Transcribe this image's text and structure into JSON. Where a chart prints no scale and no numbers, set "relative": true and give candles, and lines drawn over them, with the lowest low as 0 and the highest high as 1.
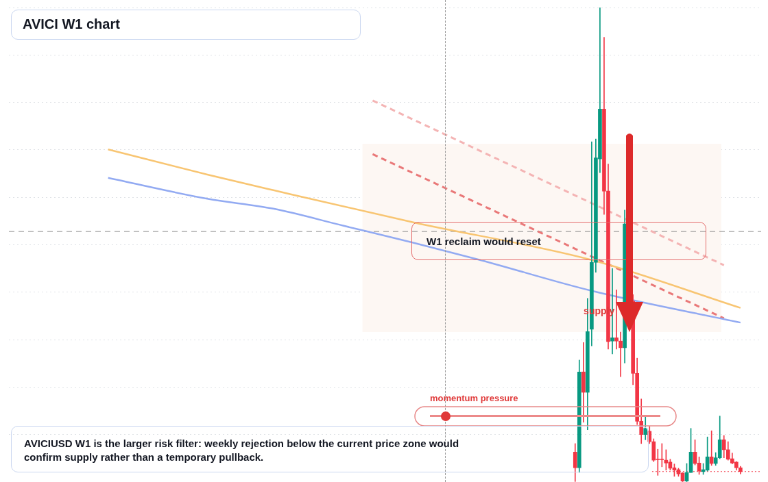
{
  "chart_data": {
    "type": "candlestick",
    "title": "AVICI W1 chart",
    "relative": true,
    "grid": "y",
    "legend": false,
    "categories": [
      null,
      null,
      null,
      null,
      null,
      null,
      null,
      null,
      null,
      null,
      null,
      null,
      null,
      null,
      null,
      null,
      null,
      null,
      null,
      null,
      null,
      null,
      null,
      null,
      null,
      null,
      null,
      null,
      null,
      null,
      null,
      null,
      null,
      null,
      null,
      null,
      null,
      null,
      null,
      null,
      null,
      null,
      null,
      null,
      null,
      null,
      null,
      null,
      null,
      null,
      null,
      null,
      null,
      null,
      null,
      null,
      null,
      null,
      null,
      null,
      null,
      null,
      null,
      null,
      null,
      null,
      null,
      null,
      null,
      null,
      null,
      null,
      null,
      null,
      null,
      null,
      null,
      null,
      null,
      null,
      null,
      null,
      null,
      null,
      null,
      null,
      null,
      null,
      null,
      null,
      null,
      null,
      null,
      null,
      null,
      null,
      null,
      null,
      null,
      null,
      null,
      null,
      null,
      null,
      null,
      null,
      null,
      null,
      null,
      null,
      null,
      null,
      null,
      null,
      null,
      null,
      null,
      null,
      null,
      null,
      null,
      null,
      null,
      null,
      null,
      null,
      null,
      null,
      null,
      null,
      null,
      null,
      null,
      null,
      null,
      null,
      null,
      null,
      null,
      null,
      null,
      null,
      null,
      null,
      null,
      null,
      null,
      null,
      null,
      null,
      null,
      null,
      null,
      null,
      null,
      null,
      null,
      null,
      null,
      null,
      null,
      null,
      null,
      null,
      null,
      null,
      null,
      null,
      null,
      null,
      null,
      null,
      null,
      null,
      null,
      null,
      null,
      null,
      null,
      null,
      null,
      null,
      null
    ],
    "ohlc": [
      null,
      null,
      null,
      null,
      null,
      null,
      null,
      null,
      null,
      null,
      null,
      null,
      null,
      null,
      null,
      null,
      null,
      null,
      null,
      null,
      null,
      null,
      null,
      null,
      null,
      null,
      null,
      null,
      null,
      null,
      null,
      null,
      null,
      null,
      null,
      null,
      null,
      null,
      null,
      null,
      null,
      null,
      null,
      null,
      null,
      null,
      null,
      null,
      null,
      null,
      null,
      null,
      null,
      null,
      null,
      null,
      null,
      null,
      null,
      null,
      null,
      null,
      null,
      null,
      null,
      null,
      null,
      null,
      null,
      null,
      null,
      null,
      null,
      null,
      null,
      null,
      null,
      null,
      null,
      null,
      null,
      null,
      null,
      null,
      null,
      null,
      null,
      null,
      null,
      null,
      null,
      null,
      null,
      null,
      null,
      null,
      null,
      null,
      null,
      null,
      null,
      null,
      null,
      null,
      null,
      null,
      null,
      null,
      null,
      null,
      null,
      null,
      null,
      null,
      null,
      null,
      null,
      null,
      null,
      null,
      null,
      null,
      null,
      null,
      null,
      null,
      null,
      null,
      null,
      null,
      null,
      null,
      null,
      null,
      null,
      null,
      null,
      [
        0.063,
        0.081,
        0.001,
        0.03
      ],
      [
        0.03,
        0.257,
        0.02,
        0.232
      ],
      [
        0.232,
        0.294,
        0.126,
        0.189
      ],
      [
        0.189,
        0.387,
        0.11,
        0.317
      ],
      [
        0.322,
        0.717,
        0.287,
        0.463
      ],
      [
        0.463,
        0.723,
        0.442,
        0.683
      ],
      [
        0.681,
        1.0,
        0.652,
        0.786
      ],
      [
        0.786,
        0.937,
        0.564,
        0.613
      ],
      [
        0.613,
        0.67,
        0.28,
        0.296
      ],
      [
        0.297,
        0.45,
        0.27,
        0.304
      ],
      [
        0.304,
        0.405,
        0.28,
        0.297
      ],
      [
        0.297,
        0.316,
        0.222,
        0.283
      ],
      [
        0.283,
        0.573,
        0.251,
        0.544
      ],
      null,
      [
        0.381,
        0.395,
        0.205,
        0.229
      ],
      [
        0.229,
        0.261,
        0.121,
        0.128
      ],
      [
        0.128,
        0.175,
        0.081,
        0.1
      ],
      [
        0.1,
        0.14,
        0.089,
        0.113
      ],
      [
        0.107,
        0.117,
        0.081,
        0.085
      ],
      [
        0.085,
        0.091,
        0.043,
        0.046
      ],
      [
        0.048,
        0.069,
        0.014,
        0.047
      ],
      [
        0.048,
        0.081,
        0.032,
        0.047
      ],
      [
        0.046,
        0.068,
        0.025,
        0.04
      ],
      [
        0.042,
        0.048,
        0.025,
        0.029
      ],
      [
        0.03,
        0.038,
        0.012,
        0.025
      ],
      [
        0.026,
        0.029,
        0.012,
        0.017
      ],
      [
        0.019,
        0.02,
        0.0,
        0.002
      ],
      [
        0.002,
        0.039,
        0.0,
        0.02
      ],
      [
        0.02,
        0.113,
        0.02,
        0.063
      ],
      [
        0.063,
        0.089,
        0.036,
        0.039
      ],
      [
        0.04,
        0.053,
        0.016,
        0.023
      ],
      [
        0.022,
        0.039,
        0.016,
        0.026
      ],
      [
        0.025,
        0.095,
        0.023,
        0.053
      ],
      [
        0.053,
        0.108,
        0.035,
        0.039
      ],
      [
        0.039,
        0.062,
        0.035,
        0.051
      ],
      [
        0.051,
        0.139,
        0.049,
        0.089
      ],
      [
        0.089,
        0.098,
        0.051,
        0.068
      ],
      [
        0.068,
        0.085,
        0.046,
        0.048
      ],
      [
        0.049,
        0.061,
        0.038,
        0.04
      ],
      [
        0.042,
        0.043,
        0.025,
        0.03
      ],
      [
        0.03,
        0.033,
        0.017,
        0.022
      ],
      null,
      null,
      null,
      null,
      null
    ],
    "colors": [
      null,
      null,
      null,
      null,
      null,
      null,
      null,
      null,
      null,
      null,
      null,
      null,
      null,
      null,
      null,
      null,
      null,
      null,
      null,
      null,
      null,
      null,
      null,
      null,
      null,
      null,
      null,
      null,
      null,
      null,
      null,
      null,
      null,
      null,
      null,
      null,
      null,
      null,
      null,
      null,
      null,
      null,
      null,
      null,
      null,
      null,
      null,
      null,
      null,
      null,
      null,
      null,
      null,
      null,
      null,
      null,
      null,
      null,
      null,
      null,
      null,
      null,
      null,
      null,
      null,
      null,
      null,
      null,
      null,
      null,
      null,
      null,
      null,
      null,
      null,
      null,
      null,
      null,
      null,
      null,
      null,
      null,
      null,
      null,
      null,
      null,
      null,
      null,
      null,
      null,
      null,
      null,
      null,
      null,
      null,
      null,
      null,
      null,
      null,
      null,
      null,
      null,
      null,
      null,
      null,
      null,
      null,
      null,
      null,
      null,
      null,
      null,
      null,
      null,
      null,
      null,
      null,
      null,
      null,
      null,
      null,
      null,
      null,
      null,
      null,
      null,
      null,
      null,
      null,
      null,
      null,
      null,
      null,
      null,
      null,
      null,
      null,
      "#f23645",
      "#089981",
      "#f23645",
      "#089981",
      "#089981",
      "#089981",
      "#089981",
      "#f23645",
      "#f23645",
      "#089981",
      "#f23645",
      "#f23645",
      "#089981",
      null,
      "#f23645",
      "#f23645",
      "#f23645",
      "#089981",
      "#f23645",
      "#f23645",
      "#f23645",
      "#f23645",
      "#f23645",
      "#f23645",
      "#f23645",
      "#f23645",
      "#f23645",
      "#089981",
      "#089981",
      "#f23645",
      "#f23645",
      "#089981",
      "#089981",
      "#f23645",
      "#089981",
      "#089981",
      "#f23645",
      "#f23645",
      "#f23645",
      "#f23645",
      "#f23645",
      null,
      null,
      null,
      null,
      null
    ],
    "series": [
      {
        "type": "line",
        "color": "#f8c572",
        "line_style": "solid",
        "values": [
          null,
          null,
          null,
          null,
          null,
          null,
          null,
          null,
          null,
          null,
          null,
          null,
          null,
          null,
          null,
          null,
          null,
          null,
          null,
          null,
          null,
          null,
          null,
          null,
          0.701,
          null,
          null,
          null,
          null,
          null,
          null,
          null,
          null,
          null,
          null,
          null,
          null,
          null,
          null,
          null,
          null,
          null,
          null,
          null,
          null,
          null,
          null,
          null,
          0.648,
          null,
          null,
          null,
          null,
          null,
          null,
          null,
          null,
          null,
          null,
          null,
          null,
          null,
          null,
          null,
          0.615,
          null,
          null,
          null,
          null,
          null,
          null,
          null,
          null,
          null,
          null,
          null,
          null,
          null,
          null,
          null,
          null,
          null,
          null,
          null,
          null,
          null,
          null,
          null,
          null,
          null,
          null,
          null,
          null,
          null,
          null,
          null,
          null,
          null,
          0.547,
          null,
          null,
          null,
          null,
          null,
          null,
          null,
          null,
          null,
          null,
          null,
          null,
          null,
          null,
          null,
          null,
          null,
          null,
          null,
          null,
          null,
          null,
          null,
          null,
          null,
          null,
          null,
          null,
          null,
          null,
          null,
          null,
          null,
          null,
          null,
          null,
          null,
          null,
          null,
          null,
          null,
          null,
          0.468,
          null,
          null,
          null,
          null,
          null,
          null,
          null,
          null,
          null,
          null,
          null,
          null,
          null,
          null,
          null,
          null,
          null,
          null,
          null,
          null,
          null,
          null,
          null,
          null,
          null,
          null,
          null,
          null,
          null,
          null,
          null,
          null,
          null,
          null,
          null,
          0.367,
          null,
          null,
          null,
          null,
          null
        ]
      },
      {
        "type": "line",
        "color": "#92aaf2",
        "line_style": "solid",
        "values": [
          null,
          null,
          null,
          null,
          null,
          null,
          null,
          null,
          null,
          null,
          null,
          null,
          null,
          null,
          null,
          null,
          null,
          null,
          null,
          null,
          null,
          null,
          null,
          null,
          0.641,
          null,
          null,
          null,
          null,
          null,
          null,
          null,
          null,
          null,
          null,
          null,
          null,
          null,
          null,
          null,
          null,
          null,
          null,
          null,
          null,
          null,
          null,
          null,
          0.597,
          null,
          null,
          null,
          null,
          null,
          null,
          null,
          null,
          null,
          null,
          null,
          null,
          null,
          null,
          null,
          0.576,
          null,
          null,
          null,
          null,
          null,
          null,
          null,
          null,
          null,
          null,
          null,
          null,
          null,
          null,
          null,
          null,
          0.54,
          null,
          null,
          null,
          null,
          null,
          null,
          null,
          null,
          null,
          null,
          null,
          null,
          null,
          null,
          null,
          null,
          0.504,
          null,
          null,
          null,
          null,
          null,
          null,
          null,
          null,
          null,
          null,
          null,
          null,
          null,
          null,
          null,
          0.468,
          null,
          null,
          null,
          null,
          null,
          null,
          null,
          null,
          null,
          null,
          null,
          null,
          null,
          null,
          null,
          null,
          null,
          null,
          null,
          null,
          null,
          null,
          null,
          null,
          null,
          null,
          0.403,
          null,
          null,
          null,
          null,
          null,
          null,
          null,
          null,
          null,
          null,
          null,
          null,
          null,
          null,
          null,
          null,
          null,
          null,
          null,
          null,
          null,
          null,
          null,
          null,
          null,
          null,
          null,
          null,
          null,
          null,
          null,
          null,
          null,
          null,
          null,
          0.336,
          null,
          null,
          null,
          null,
          null
        ]
      },
      {
        "type": "line",
        "color": "#e97878",
        "line_style": "dashed",
        "values": [
          null,
          null,
          null,
          null,
          null,
          null,
          null,
          null,
          null,
          null,
          null,
          null,
          null,
          null,
          null,
          null,
          null,
          null,
          null,
          null,
          null,
          null,
          null,
          null,
          null,
          null,
          null,
          null,
          null,
          null,
          null,
          null,
          null,
          null,
          null,
          null,
          null,
          null,
          null,
          null,
          null,
          null,
          null,
          null,
          null,
          null,
          null,
          null,
          null,
          null,
          null,
          null,
          null,
          null,
          null,
          null,
          null,
          null,
          null,
          null,
          null,
          null,
          null,
          null,
          null,
          null,
          null,
          null,
          null,
          null,
          null,
          null,
          null,
          null,
          null,
          null,
          null,
          null,
          null,
          null,
          null,
          null,
          null,
          null,
          null,
          null,
          null,
          null,
          0.691,
          null,
          null,
          null,
          null,
          null,
          null,
          null,
          null,
          null,
          null,
          null,
          null,
          null,
          null,
          null,
          null,
          null,
          null,
          null,
          null,
          null,
          null,
          null,
          null,
          null,
          null,
          null,
          null,
          null,
          null,
          null,
          null,
          null,
          null,
          null,
          null,
          null,
          null,
          null,
          null,
          null,
          null,
          null,
          null,
          null,
          null,
          null,
          null,
          null,
          null,
          null,
          null,
          null,
          null,
          null,
          null,
          null,
          null,
          null,
          null,
          null,
          null,
          null,
          null,
          null,
          null,
          null,
          null,
          null,
          null,
          null,
          null,
          null,
          null,
          null,
          null,
          null,
          null,
          null,
          null,
          null,
          null,
          null,
          null,
          0.345,
          null,
          null,
          null,
          null,
          null,
          null,
          null,
          null,
          null
        ]
      },
      {
        "type": "line",
        "color": "#f4b4b4",
        "line_style": "dashed",
        "values": [
          null,
          null,
          null,
          null,
          null,
          null,
          null,
          null,
          null,
          null,
          null,
          null,
          null,
          null,
          null,
          null,
          null,
          null,
          null,
          null,
          null,
          null,
          null,
          null,
          null,
          null,
          null,
          null,
          null,
          null,
          null,
          null,
          null,
          null,
          null,
          null,
          null,
          null,
          null,
          null,
          null,
          null,
          null,
          null,
          null,
          null,
          null,
          null,
          null,
          null,
          null,
          null,
          null,
          null,
          null,
          null,
          null,
          null,
          null,
          null,
          null,
          null,
          null,
          null,
          null,
          null,
          null,
          null,
          null,
          null,
          null,
          null,
          null,
          null,
          null,
          null,
          null,
          null,
          null,
          null,
          null,
          null,
          null,
          null,
          null,
          null,
          null,
          null,
          0.804,
          null,
          null,
          null,
          null,
          null,
          null,
          null,
          null,
          null,
          null,
          null,
          null,
          null,
          null,
          null,
          null,
          null,
          null,
          null,
          null,
          null,
          null,
          null,
          null,
          null,
          null,
          null,
          null,
          null,
          null,
          null,
          null,
          null,
          null,
          null,
          null,
          null,
          null,
          null,
          null,
          null,
          null,
          null,
          null,
          null,
          null,
          null,
          null,
          null,
          null,
          null,
          null,
          null,
          null,
          null,
          null,
          null,
          null,
          null,
          null,
          null,
          null,
          null,
          null,
          null,
          null,
          null,
          null,
          null,
          null,
          null,
          null,
          null,
          null,
          null,
          null,
          null,
          null,
          null,
          null,
          null,
          null,
          null,
          null,
          0.457,
          null,
          null,
          null,
          null,
          null,
          null,
          null,
          null,
          null
        ]
      }
    ],
    "ref_lines": [
      {
        "axis": "y",
        "value": 0.528,
        "color": "#888888",
        "line_style": "dashed"
      },
      {
        "axis": "y",
        "value": 0.022,
        "color": "#f23645",
        "line_style": "dotted"
      }
    ],
    "bands": [
      {
        "axis": "y",
        "from": 0.316,
        "to": 0.713,
        "label": "supply",
        "color": "#fdf7f3"
      }
    ],
    "annotations": [
      "W1 reclaim would reset",
      "momentum pressure",
      "AVICIUSD W1 is the larger risk filter: weekly rejection below the current price zone would confirm supply rather than a temporary pullback."
    ]
  }
}
